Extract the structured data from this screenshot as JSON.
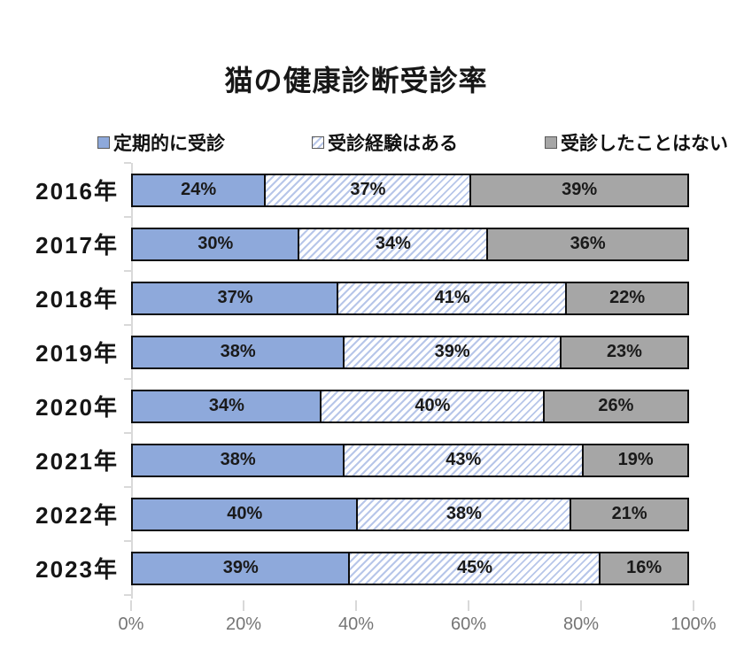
{
  "title": "猫の健康診断受診率",
  "colors": {
    "bar_border": "#0d0d0d",
    "axis_line": "#d9d9d9",
    "axis_label_text": "#757575",
    "value_label_text": "#1a1a1a",
    "swatch_border": "#5a5a5a",
    "hatch_background": "#ffffff"
  },
  "chart_data": {
    "type": "bar",
    "orientation": "horizontal",
    "stacked": true,
    "title": "猫の健康診断受診率",
    "categories": [
      "2016年",
      "2017年",
      "2018年",
      "2019年",
      "2020年",
      "2021年",
      "2022年",
      "2023年"
    ],
    "series": [
      {
        "name": "定期的に受診",
        "style": "solid",
        "color": "#8EA9DB",
        "values": [
          24,
          30,
          37,
          38,
          34,
          38,
          40,
          39
        ]
      },
      {
        "name": "受診経験はある",
        "style": "hatched",
        "color": "#B7C6E9",
        "values": [
          37,
          34,
          41,
          39,
          40,
          43,
          38,
          45
        ]
      },
      {
        "name": "受診したことはない",
        "style": "solid",
        "color": "#A6A6A6",
        "values": [
          39,
          36,
          22,
          23,
          26,
          19,
          21,
          16
        ]
      }
    ],
    "value_suffix": "%",
    "legend_position": "top",
    "grid": false,
    "x_axis": {
      "min": 0,
      "max": 100,
      "ticks": [
        "0%",
        "20%",
        "40%",
        "60%",
        "80%",
        "100%"
      ]
    }
  }
}
